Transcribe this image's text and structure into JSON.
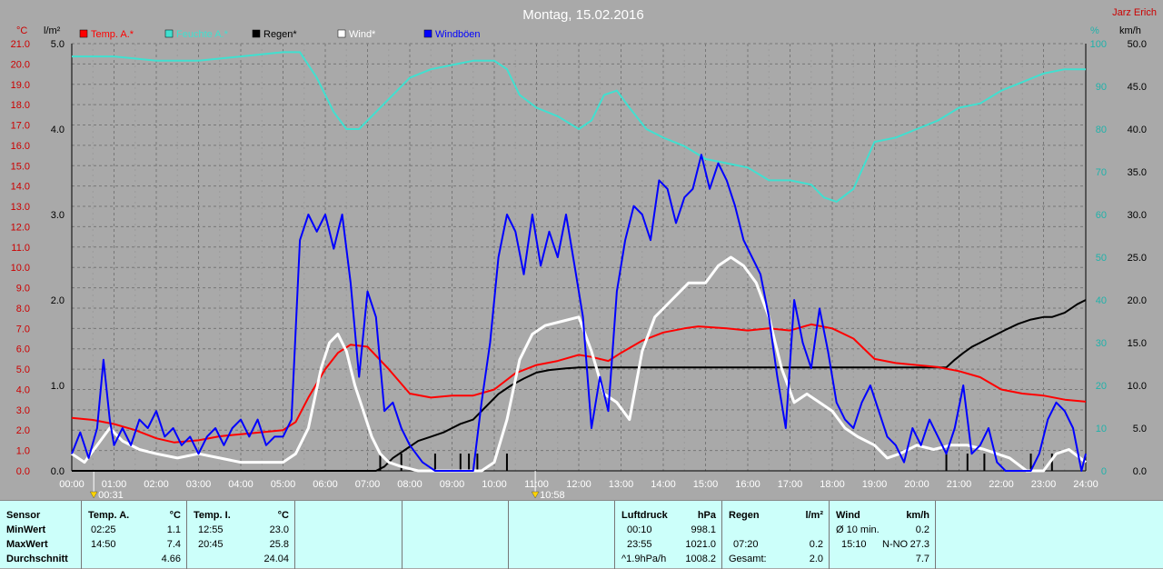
{
  "page": {
    "title": "Montag, 15.02.2016",
    "author": "Jarz Erich"
  },
  "colors": {
    "bg": "#a9a9a9",
    "temp": "#ff0000",
    "humidity": "#40e0d0",
    "rain": "#000000",
    "wind": "#ffffff",
    "gust": "#0000ff",
    "axis_red": "#cc0000",
    "axis_cyan": "#20b2aa",
    "grid": "#777777",
    "panel": "#ccfffa"
  },
  "chart_data": {
    "type": "line",
    "title": "Montag, 15.02.2016",
    "x_ticks": [
      "00:00",
      "01:00",
      "02:00",
      "03:00",
      "04:00",
      "05:00",
      "06:00",
      "07:00",
      "08:00",
      "09:00",
      "10:00",
      "11:00",
      "12:00",
      "13:00",
      "14:00",
      "15:00",
      "16:00",
      "17:00",
      "18:00",
      "19:00",
      "20:00",
      "21:00",
      "22:00",
      "23:00",
      "24:00"
    ],
    "xlim": [
      0,
      24
    ],
    "y_temp": {
      "unit": "°C",
      "lim": [
        0,
        21
      ],
      "ticks": [
        "0.0",
        "1.0",
        "2.0",
        "3.0",
        "4.0",
        "5.0",
        "6.0",
        "7.0",
        "8.0",
        "9.0",
        "10.0",
        "11.0",
        "12.0",
        "13.0",
        "14.0",
        "15.0",
        "16.0",
        "17.0",
        "18.0",
        "19.0",
        "20.0",
        "21.0"
      ]
    },
    "y_rain": {
      "unit": "l/m²",
      "lim": [
        0,
        5
      ],
      "ticks": [
        "0.0",
        "1.0",
        "2.0",
        "3.0",
        "4.0",
        "5.0"
      ]
    },
    "y_hum": {
      "unit": "%",
      "lim": [
        0,
        100
      ],
      "ticks": [
        "0",
        "10",
        "20",
        "30",
        "40",
        "50",
        "60",
        "70",
        "80",
        "90",
        "100"
      ]
    },
    "y_wind": {
      "unit": "km/h",
      "lim": [
        0,
        50
      ],
      "ticks": [
        "0.0",
        "5.0",
        "10.0",
        "15.0",
        "20.0",
        "25.0",
        "30.0",
        "35.0",
        "40.0",
        "45.0",
        "50.0"
      ]
    },
    "legend": [
      "Temp. A.*",
      "Feuchte A.*",
      "Regen*",
      "Wind*",
      "Windböen"
    ],
    "markers": [
      {
        "x": 0.52,
        "label": "00:31"
      },
      {
        "x": 10.97,
        "label": "10:58"
      }
    ],
    "series": [
      {
        "name": "Temp. A.*",
        "axis": "temp",
        "x": [
          0,
          0.5,
          1,
          1.5,
          2,
          2.42,
          3,
          3.5,
          4,
          4.5,
          5,
          5.3,
          5.6,
          6,
          6.3,
          6.6,
          7,
          7.5,
          8,
          8.5,
          9,
          9.5,
          10,
          10.5,
          11,
          11.5,
          12,
          12.3,
          12.7,
          13,
          13.5,
          14,
          14.5,
          14.83,
          15.5,
          16,
          16.5,
          17,
          17.5,
          18,
          18.5,
          19,
          19.5,
          20,
          20.5,
          21,
          21.5,
          22,
          22.5,
          23,
          23.5,
          24
        ],
        "values": [
          2.6,
          2.5,
          2.3,
          2.0,
          1.6,
          1.4,
          1.5,
          1.7,
          1.8,
          1.9,
          2.0,
          2.4,
          3.6,
          5.0,
          5.8,
          6.2,
          6.1,
          5.0,
          3.8,
          3.6,
          3.7,
          3.7,
          4.0,
          4.8,
          5.2,
          5.4,
          5.7,
          5.6,
          5.4,
          5.8,
          6.4,
          6.8,
          7.0,
          7.1,
          7.0,
          6.9,
          7.0,
          6.9,
          7.2,
          7.0,
          6.5,
          5.5,
          5.3,
          5.2,
          5.1,
          4.9,
          4.6,
          4.0,
          3.8,
          3.7,
          3.5,
          3.4
        ]
      },
      {
        "name": "Feuchte A.*",
        "axis": "hum",
        "x": [
          0,
          1,
          2,
          3,
          4,
          5,
          5.4,
          5.8,
          6.2,
          6.5,
          6.8,
          7.2,
          7.7,
          8,
          8.5,
          9,
          9.5,
          10,
          10.3,
          10.6,
          11,
          11.5,
          12,
          12.3,
          12.6,
          12.9,
          13.2,
          13.6,
          14,
          14.5,
          15,
          15.5,
          16,
          16.5,
          17,
          17.5,
          17.8,
          18.1,
          18.5,
          19,
          19.5,
          20,
          20.5,
          21,
          21.5,
          22,
          22.5,
          23,
          23.5,
          24
        ],
        "values": [
          97,
          97,
          96,
          96,
          97,
          98,
          98,
          92,
          84,
          80,
          80,
          84,
          89,
          92,
          94,
          95,
          96,
          96,
          94,
          88,
          85,
          83,
          80,
          82,
          88,
          89,
          85,
          80,
          78,
          76,
          73,
          72,
          71,
          68,
          68,
          67,
          64,
          63,
          66,
          77,
          78,
          80,
          82,
          85,
          86,
          89,
          91,
          93,
          94,
          94
        ]
      },
      {
        "name": "Regen*",
        "axis": "rain",
        "x": [
          0,
          7.2,
          7.4,
          7.6,
          7.9,
          8.2,
          8.5,
          8.8,
          9.0,
          9.2,
          9.5,
          9.8,
          10.1,
          10.4,
          10.7,
          11.0,
          11.3,
          11.7,
          12,
          13,
          14,
          15,
          16,
          17,
          18,
          19,
          20,
          20.7,
          20.9,
          21.1,
          21.3,
          21.5,
          21.7,
          21.9,
          22.1,
          22.4,
          22.7,
          23,
          23.2,
          23.5,
          23.8,
          24
        ],
        "values": [
          0,
          0,
          0.05,
          0.15,
          0.25,
          0.35,
          0.4,
          0.45,
          0.5,
          0.55,
          0.6,
          0.75,
          0.9,
          1.0,
          1.08,
          1.15,
          1.18,
          1.2,
          1.21,
          1.21,
          1.21,
          1.21,
          1.21,
          1.21,
          1.21,
          1.21,
          1.21,
          1.21,
          1.3,
          1.38,
          1.45,
          1.5,
          1.55,
          1.6,
          1.65,
          1.72,
          1.77,
          1.8,
          1.8,
          1.85,
          1.95,
          2.0
        ]
      },
      {
        "name": "Wind*",
        "axis": "wind",
        "x": [
          0,
          0.3,
          0.6,
          0.9,
          1.2,
          1.6,
          2,
          2.5,
          3,
          3.5,
          4,
          4.5,
          5,
          5.3,
          5.6,
          5.9,
          6.1,
          6.3,
          6.5,
          6.7,
          6.9,
          7.1,
          7.3,
          7.5,
          7.8,
          8.2,
          8.7,
          9.2,
          9.7,
          10.0,
          10.3,
          10.6,
          10.9,
          11.2,
          11.6,
          12,
          12.3,
          12.6,
          12.9,
          13.2,
          13.5,
          13.8,
          14.2,
          14.6,
          15,
          15.3,
          15.6,
          15.9,
          16.2,
          16.5,
          16.8,
          17.1,
          17.4,
          17.7,
          18,
          18.3,
          18.6,
          19,
          19.3,
          19.6,
          20,
          20.4,
          20.8,
          21.2,
          21.6,
          21.9,
          22.2,
          22.6,
          23,
          23.3,
          23.6,
          24
        ],
        "values": [
          2,
          1,
          3,
          5,
          3.5,
          2.5,
          2,
          1.5,
          2,
          1.5,
          1,
          1,
          1,
          2,
          5,
          12,
          15,
          16,
          14,
          10,
          7,
          4,
          2,
          1,
          0.5,
          0,
          0,
          0,
          0,
          1,
          6,
          13,
          16,
          17,
          17.5,
          18,
          14,
          9,
          8,
          6,
          14,
          18,
          20,
          22,
          22,
          24,
          25,
          24,
          22,
          18,
          12,
          8,
          9,
          8,
          7,
          5,
          4,
          3,
          1.5,
          2,
          3,
          2.5,
          3,
          3,
          2.5,
          2,
          1.5,
          0,
          0,
          2,
          2.5,
          1
        ]
      },
      {
        "name": "Windböen",
        "axis": "wind",
        "x": [
          0,
          0.2,
          0.4,
          0.6,
          0.75,
          0.9,
          1.0,
          1.2,
          1.4,
          1.6,
          1.8,
          2.0,
          2.2,
          2.4,
          2.6,
          2.8,
          3.0,
          3.2,
          3.4,
          3.6,
          3.8,
          4.0,
          4.2,
          4.4,
          4.6,
          4.8,
          5.0,
          5.2,
          5.4,
          5.6,
          5.8,
          6.0,
          6.2,
          6.4,
          6.6,
          6.8,
          7.0,
          7.2,
          7.4,
          7.6,
          7.8,
          8.0,
          8.3,
          8.6,
          8.9,
          9.2,
          9.5,
          9.7,
          9.9,
          10.1,
          10.3,
          10.5,
          10.7,
          10.9,
          11.1,
          11.3,
          11.5,
          11.7,
          11.9,
          12.1,
          12.3,
          12.5,
          12.7,
          12.9,
          13.1,
          13.3,
          13.5,
          13.7,
          13.9,
          14.1,
          14.3,
          14.5,
          14.7,
          14.9,
          15.1,
          15.3,
          15.5,
          15.7,
          15.9,
          16.1,
          16.3,
          16.5,
          16.7,
          16.9,
          17.1,
          17.3,
          17.5,
          17.7,
          17.9,
          18.1,
          18.3,
          18.5,
          18.7,
          18.9,
          19.1,
          19.3,
          19.5,
          19.7,
          19.9,
          20.1,
          20.3,
          20.5,
          20.7,
          20.9,
          21.1,
          21.3,
          21.5,
          21.7,
          21.9,
          22.1,
          22.3,
          22.5,
          22.7,
          22.9,
          23.1,
          23.3,
          23.5,
          23.7,
          23.9,
          24
        ],
        "values": [
          2,
          4.5,
          1.5,
          5,
          13,
          6,
          3,
          5,
          3,
          6,
          5,
          7,
          4,
          5,
          3,
          4,
          2,
          4,
          5,
          3,
          5,
          6,
          4,
          6,
          3,
          4,
          4,
          6,
          27,
          30,
          28,
          30,
          26,
          30,
          22,
          11,
          21,
          18,
          7,
          8,
          5,
          3,
          1,
          0,
          0,
          0,
          0,
          8,
          15,
          25,
          30,
          28,
          23,
          30,
          24,
          28,
          25,
          30,
          24,
          18,
          5,
          11,
          7,
          21,
          27,
          31,
          30,
          27,
          34,
          33,
          29,
          32,
          33,
          37,
          33,
          36,
          34,
          31,
          27,
          25,
          23,
          18,
          11,
          5,
          20,
          15,
          12,
          19,
          14,
          8,
          6,
          5,
          8,
          10,
          7,
          4,
          3,
          1,
          5,
          3,
          6,
          4,
          2,
          5,
          10,
          2,
          3,
          5,
          1,
          0,
          0,
          0,
          0,
          2,
          6,
          8,
          7,
          5,
          0,
          2
        ]
      }
    ],
    "rain_bars_x": [
      7.3,
      7.8,
      8.6,
      9.2,
      9.4,
      9.6,
      10.3,
      20.7,
      21.2,
      21.6,
      22.7,
      23.2
    ]
  },
  "stats": {
    "sensor": {
      "title": "Sensor",
      "rows": [
        "MinWert",
        "MaxWert",
        "Durchschnitt"
      ]
    },
    "temp_a": {
      "title": "Temp. A.",
      "unit": "°C",
      "rows": [
        [
          "02:25",
          "1.1"
        ],
        [
          "14:50",
          "7.4"
        ],
        [
          "",
          "4.66"
        ]
      ]
    },
    "temp_i": {
      "title": "Temp. I.",
      "unit": "°C",
      "rows": [
        [
          "12:55",
          "23.0"
        ],
        [
          "20:45",
          "25.8"
        ],
        [
          "",
          "24.04"
        ]
      ]
    },
    "pressure": {
      "title": "Luftdruck",
      "unit": "hPa",
      "rows": [
        [
          "00:10",
          "998.1"
        ],
        [
          "23:55",
          "1021.0"
        ],
        [
          "^1.9hPa/h",
          "1008.2"
        ]
      ]
    },
    "rain": {
      "title": "Regen",
      "unit": "l/m²",
      "rows": [
        [
          "",
          ""
        ],
        [
          "07:20",
          "0.2"
        ],
        [
          "Gesamt:",
          "2.0"
        ]
      ]
    },
    "wind": {
      "title": "Wind",
      "unit": "km/h",
      "rows": [
        [
          "Ø 10 min.",
          "",
          "0.2"
        ],
        [
          "15:10",
          "N-NO",
          "27.3"
        ],
        [
          "",
          "",
          "7.7"
        ]
      ]
    }
  }
}
